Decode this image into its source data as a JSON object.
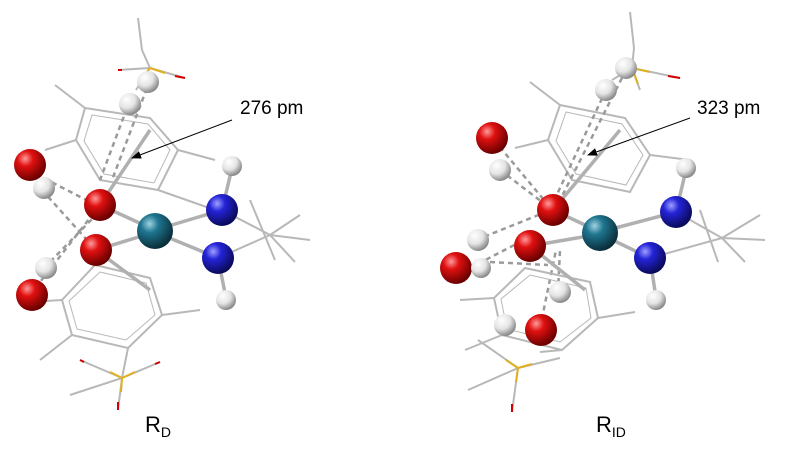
{
  "panels": [
    {
      "name_main": "R",
      "name_sub": "D",
      "distance_label": "276 pm"
    },
    {
      "name_main": "R",
      "name_sub": "ID",
      "distance_label": "323 pm"
    }
  ],
  "colors": {
    "oxygen": "#d40000",
    "nitrogen": "#1f1fcc",
    "metal": "#1f6e86",
    "hydrogen": "#e8e8e8",
    "sulfur": "#e0b020",
    "bond": "#b0b0b0",
    "hbond": "#9a9a9a",
    "background": "#ffffff"
  }
}
